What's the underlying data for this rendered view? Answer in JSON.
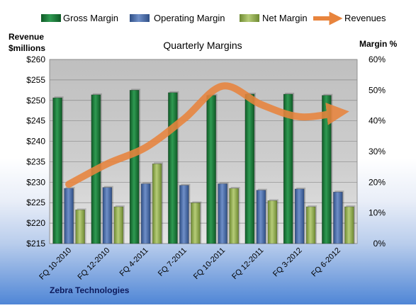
{
  "chart_data": {
    "type": "bar",
    "title": "Quarterly Margins",
    "company": "Zebra Technologies",
    "left_axis_label_line1": "Revenue",
    "left_axis_label_line2": "$millions",
    "right_axis_label": "Margin %",
    "categories": [
      "FQ 10-2010",
      "FQ 12-2010",
      "FQ 4-2011",
      "FQ 7-2011",
      "FQ 10-2011",
      "FQ 12-2011",
      "FQ 3-2012",
      "FQ 6-2012"
    ],
    "y_left": {
      "min": 215,
      "max": 260,
      "step": 5,
      "tick_labels": [
        "$215",
        "$220",
        "$225",
        "$230",
        "$235",
        "$240",
        "$245",
        "$250",
        "$255",
        "$260"
      ]
    },
    "y_right": {
      "min": 0,
      "max": 60,
      "step": 10,
      "tick_labels": [
        "0%",
        "10%",
        "20%",
        "30%",
        "40%",
        "50%",
        "60%"
      ]
    },
    "grid": true,
    "legend_position": "top",
    "series": [
      {
        "name": "Gross Margin",
        "axis": "right",
        "color": "#1f7a3c",
        "values": [
          47.5,
          48.5,
          50.0,
          49.2,
          48.3,
          48.7,
          48.7,
          48.3
        ]
      },
      {
        "name": "Operating Margin",
        "axis": "right",
        "color": "#4a6fb0",
        "values": [
          18.0,
          18.3,
          19.5,
          19.0,
          19.5,
          17.4,
          17.8,
          16.8
        ]
      },
      {
        "name": "Net Margin",
        "axis": "right",
        "color": "#93ad4f",
        "values": [
          11.0,
          12.0,
          26.0,
          13.3,
          18.0,
          14.0,
          12.0,
          12.0
        ]
      },
      {
        "name": "Revenues",
        "axis": "left",
        "type": "line",
        "color": "#e8843d",
        "values": [
          229.5,
          234.5,
          238.5,
          245.5,
          253.5,
          249.0,
          246.0,
          247.0
        ]
      }
    ]
  }
}
